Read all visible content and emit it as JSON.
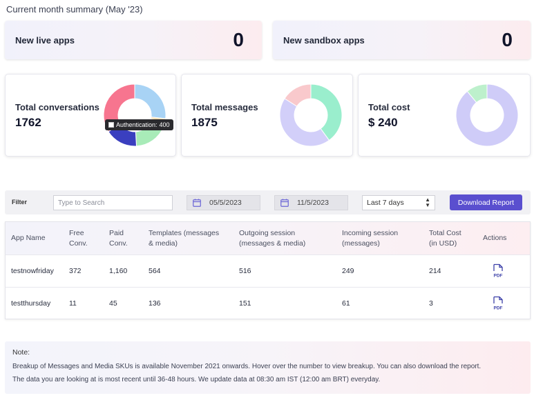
{
  "section_title": "Current month summary (May '23)",
  "summary": {
    "live": {
      "label": "New live apps",
      "value": "0"
    },
    "sandbox": {
      "label": "New sandbox apps",
      "value": "0"
    }
  },
  "metrics": {
    "conversations": {
      "label": "Total conversations",
      "value": "1762"
    },
    "messages": {
      "label": "Total messages",
      "value": "1875"
    },
    "cost": {
      "label": "Total cost",
      "value": "$ 240"
    }
  },
  "tooltip": {
    "label": "Authentication:",
    "value": "400"
  },
  "chart_data": [
    {
      "type": "pie",
      "title": "Total conversations",
      "slices": [
        {
          "value": 30,
          "color": "#a8d3f5"
        },
        {
          "value": 2,
          "color": "#ffe0b3"
        },
        {
          "value": 3,
          "color": "#f9d5d5"
        },
        {
          "name": "Authentication",
          "value": 20,
          "color": "#a8ebb8"
        },
        {
          "value": 19,
          "color": "#3a3fbf"
        },
        {
          "value": 3,
          "color": "#f07fa0"
        },
        {
          "value": 35,
          "color": "#f7758f"
        }
      ]
    },
    {
      "type": "pie",
      "title": "Total messages",
      "slices": [
        {
          "value": 40,
          "color": "#9aeecd"
        },
        {
          "value": 44,
          "color": "#d2cff9"
        },
        {
          "value": 16,
          "color": "#f9c9cc"
        }
      ]
    },
    {
      "type": "pie",
      "title": "Total cost",
      "slices": [
        {
          "value": 89,
          "color": "#cfccf8"
        },
        {
          "value": 11,
          "color": "#bdf0cc"
        }
      ]
    }
  ],
  "filter": {
    "label": "Filter",
    "search_placeholder": "Type to Search",
    "date_from": "05/5/2023",
    "date_to": "11/5/2023",
    "range": "Last 7 days",
    "download_label": "Download Report"
  },
  "table": {
    "headers": {
      "app": "App Name",
      "free_1": "Free",
      "free_2": "Conv.",
      "paid_1": "Paid",
      "paid_2": "Conv.",
      "templates_1": "Templates (messages",
      "templates_2": "& media)",
      "outgoing_1": "Outgoing session",
      "outgoing_2": "(messages & media)",
      "incoming_1": "Incoming session",
      "incoming_2": "(messages)",
      "cost_1": "Total Cost",
      "cost_2": "(in USD)",
      "actions": "Actions"
    },
    "rows": [
      {
        "app": "testnowfriday",
        "free": "372",
        "paid": "1,160",
        "templates": "564",
        "outgoing": "516",
        "incoming": "249",
        "cost": "214",
        "action": "PDF"
      },
      {
        "app": "testthursday",
        "free": "11",
        "paid": "45",
        "templates": "136",
        "outgoing": "151",
        "incoming": "61",
        "cost": "3",
        "action": "PDF"
      }
    ]
  },
  "note": {
    "title": "Note:",
    "line1": "Breakup of Messages and Media SKUs is available November 2021 onwards. Hover over the number to view breakup. You can also download the report.",
    "line2": "The data you are looking at is most recent until 36-48 hours. We update data at 08:30 am IST (12:00 am BRT) everyday."
  }
}
